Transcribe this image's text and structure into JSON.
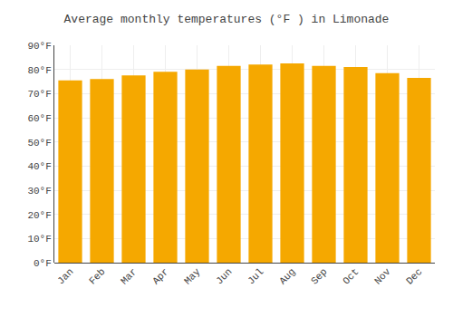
{
  "chart_data": {
    "type": "bar",
    "title": "Average monthly temperatures (°F ) in Limonade",
    "categories": [
      "Jan",
      "Feb",
      "Mar",
      "Apr",
      "May",
      "Jun",
      "Jul",
      "Aug",
      "Sep",
      "Oct",
      "Nov",
      "Dec"
    ],
    "values": [
      75.5,
      76.0,
      77.5,
      79.0,
      80.0,
      81.5,
      82.0,
      82.5,
      81.5,
      81.0,
      78.5,
      76.5
    ],
    "color": "#F5A800",
    "ylim": [
      0,
      90
    ],
    "yticks": [
      {
        "value": 0,
        "label": "0°F"
      },
      {
        "value": 10,
        "label": "10°F"
      },
      {
        "value": 20,
        "label": "20°F"
      },
      {
        "value": 30,
        "label": "30°F"
      },
      {
        "value": 40,
        "label": "40°F"
      },
      {
        "value": 50,
        "label": "50°F"
      },
      {
        "value": 60,
        "label": "60°F"
      },
      {
        "value": 70,
        "label": "70°F"
      },
      {
        "value": 80,
        "label": "80°F"
      },
      {
        "value": 90,
        "label": "90°F"
      }
    ],
    "grid": true
  }
}
